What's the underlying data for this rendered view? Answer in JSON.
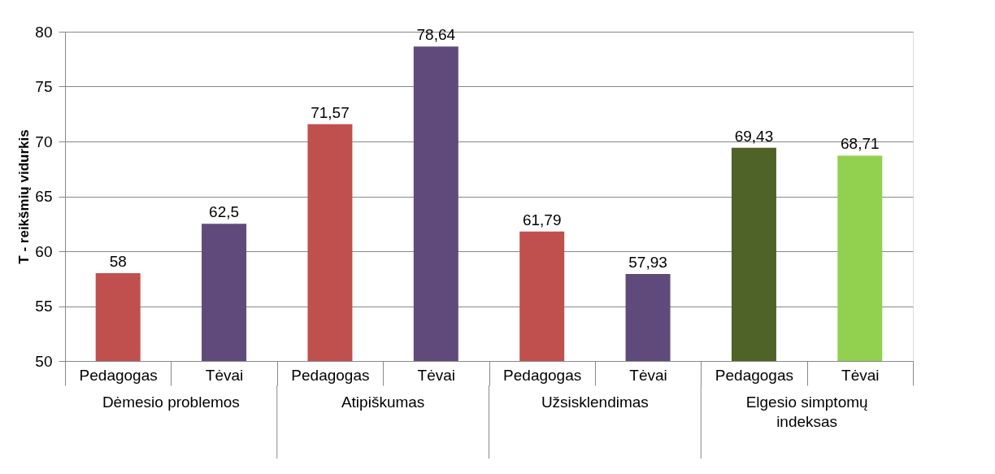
{
  "chart_data": {
    "type": "bar",
    "ylabel": "T - reikšmių vidurkis",
    "categories": [
      "Pedagogas",
      "Tėvai",
      "Pedagogas",
      "Tėvai",
      "Pedagogas",
      "Tėvai",
      "Pedagogas",
      "Tėvai"
    ],
    "values": [
      58,
      62.5,
      71.57,
      78.64,
      61.79,
      57.93,
      69.43,
      68.71
    ],
    "colors": [
      "#c0504d",
      "#604a7b",
      "#c0504d",
      "#604a7b",
      "#c0504d",
      "#604a7b",
      "#4f6228",
      "#92d050"
    ],
    "value_labels": [
      "58",
      "62,5",
      "71,57",
      "78,64",
      "61,79",
      "57,93",
      "69,43",
      "68,71"
    ],
    "ylim": [
      50,
      80
    ],
    "yticks": [
      50,
      55,
      60,
      65,
      70,
      75,
      80
    ],
    "grid": "y",
    "annotations": [
      "Dėmesio problemos",
      "Atipiškumas",
      "Užsisklendimas",
      "Elgesio simptomų\nindeksas"
    ]
  }
}
